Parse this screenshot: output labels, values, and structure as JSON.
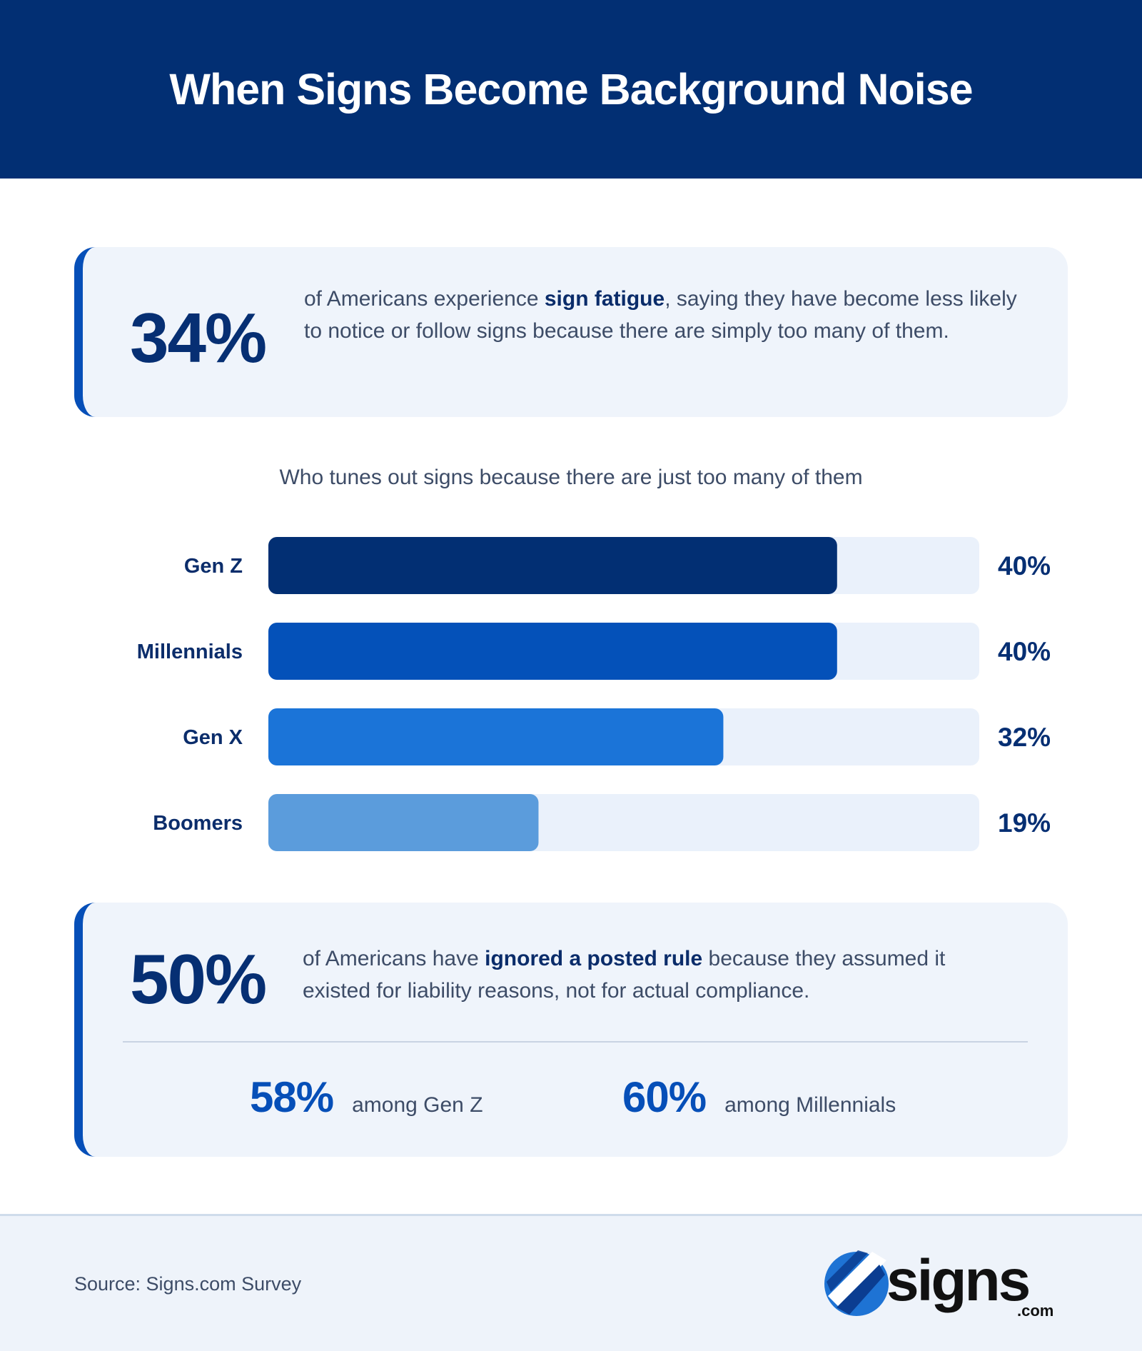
{
  "header": {
    "title": "When Signs Become Background Noise"
  },
  "card1": {
    "stat": "34%",
    "text_before": "of Americans experience ",
    "text_bold": "sign fatigue",
    "text_after": ", saying they have become less likely to notice or follow signs because there are simply too many of them."
  },
  "chart_data": {
    "type": "bar",
    "orientation": "horizontal",
    "title": "Who tunes out signs because there are just too many of them",
    "categories": [
      "Gen Z",
      "Millennials",
      "Gen X",
      "Boomers"
    ],
    "values": [
      40,
      40,
      32,
      19
    ],
    "value_labels": [
      "40%",
      "40%",
      "32%",
      "19%"
    ],
    "xlim": [
      0,
      50
    ],
    "colors": [
      "#022f73",
      "#0451b9",
      "#1b74d8",
      "#5b9cdc"
    ],
    "track_color": "#eaf1fb",
    "grid": false
  },
  "card2": {
    "stat": "50%",
    "text_before": "of Americans have ",
    "text_bold": "ignored a posted rule",
    "text_after": " because they assumed it existed for liability reasons, not for actual compliance.",
    "sub1": {
      "num": "58%",
      "label": "among Gen Z"
    },
    "sub2": {
      "num": "60%",
      "label": "among Millennials"
    }
  },
  "footer": {
    "source": "Source: Signs.com Survey",
    "logo_word": "signs",
    "logo_suffix": ".com"
  },
  "colors": {
    "navy": "#022f73",
    "accent": "#064fb8",
    "card_bg": "#eff4fb"
  }
}
